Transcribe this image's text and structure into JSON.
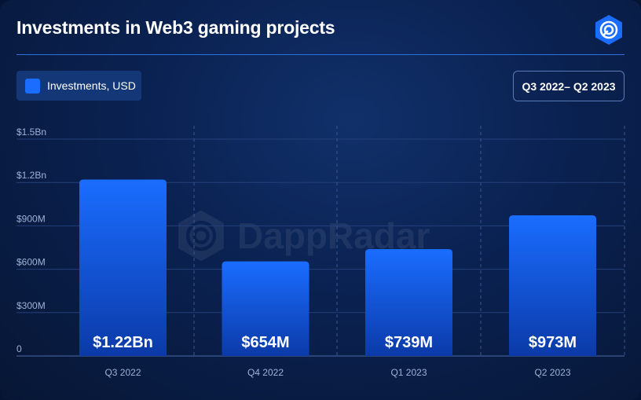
{
  "header": {
    "title": "Investments in Web3 gaming projects",
    "logo_icon": "dappradar-logo-icon"
  },
  "legend": {
    "label": "Investments, USD",
    "color": "#1a6dff"
  },
  "period_badge": "Q3 2022– Q2 2023",
  "watermark": {
    "text": "DappRadar",
    "icon": "dappradar-logo-icon"
  },
  "chart_data": {
    "type": "bar",
    "categories": [
      "Q3 2022",
      "Q4 2022",
      "Q1 2023",
      "Q2 2023"
    ],
    "values": [
      1220000000,
      654000000,
      739000000,
      973000000
    ],
    "data_labels": [
      "$1.22Bn",
      "$654M",
      "$739M",
      "$973M"
    ],
    "ylim": [
      0,
      1500000000
    ],
    "yticks": [
      0,
      300000000,
      600000000,
      900000000,
      1200000000,
      1500000000
    ],
    "ytick_labels": [
      "0",
      "$300M",
      "$600M",
      "$900M",
      "$1.2Bn",
      "$1.5Bn"
    ],
    "grid": true,
    "legend_position": "top-left",
    "bar_color_top": "#1a6dff",
    "bar_color_bottom": "#0b3aa8"
  }
}
